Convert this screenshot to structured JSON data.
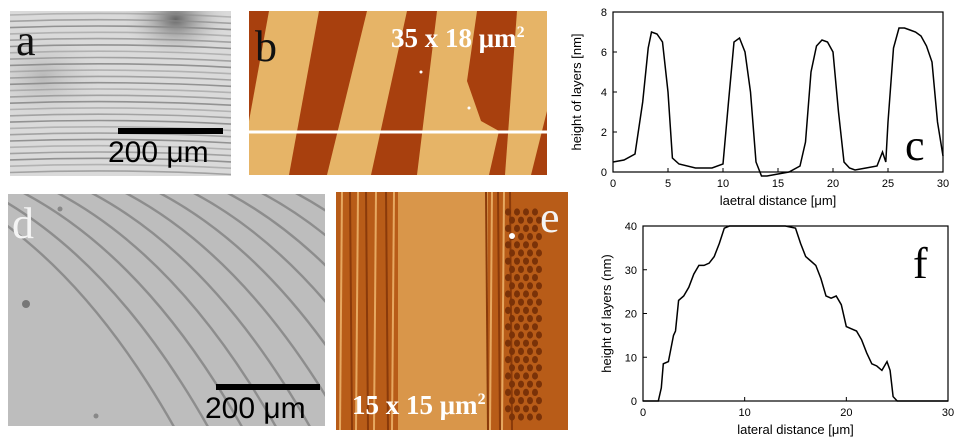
{
  "panels": {
    "a": {
      "letter": "a",
      "scale_bar": "200 μm"
    },
    "b": {
      "letter": "b",
      "area_prefix": "35 x 18 μm",
      "area_exp": "2"
    },
    "d": {
      "letter": "d",
      "scale_bar": "200 μm"
    },
    "e": {
      "letter": "e",
      "area_prefix": "15 x 15 μm",
      "area_exp": "2"
    }
  },
  "chart_data": [
    {
      "type": "line",
      "panel_letter": "c",
      "xlabel": "laetral distance [μm]",
      "ylabel": "height of layers [nm]",
      "xlim": [
        0,
        30
      ],
      "ylim": [
        0,
        8
      ],
      "xticks": [
        "0",
        "5",
        "10",
        "15",
        "20",
        "25",
        "30"
      ],
      "yticks": [
        "0",
        "2",
        "4",
        "6",
        "8"
      ],
      "grid": false,
      "x": [
        0,
        1.0,
        2.0,
        2.7,
        3.2,
        3.5,
        4.0,
        4.5,
        5.0,
        5.4,
        6.0,
        7.5,
        9.0,
        10.0,
        10.5,
        11.0,
        11.5,
        12.0,
        12.5,
        13.0,
        13.5,
        14.0,
        15.0,
        16.0,
        17.0,
        17.5,
        18.0,
        18.5,
        19.0,
        19.5,
        20.0,
        20.5,
        21.0,
        21.5,
        22.0,
        23.0,
        24.0,
        24.5,
        24.8,
        25.0,
        25.5,
        26.0,
        26.5,
        27.0,
        27.5,
        28.0,
        28.5,
        29.0,
        29.5,
        30.0
      ],
      "y": [
        0.5,
        0.6,
        0.9,
        3.5,
        6.2,
        7.0,
        6.9,
        6.5,
        4.0,
        0.7,
        0.4,
        0.2,
        0.2,
        0.4,
        3.5,
        6.5,
        6.7,
        6.0,
        4.0,
        0.5,
        -0.2,
        -0.2,
        -0.1,
        0.0,
        0.3,
        1.5,
        5.0,
        6.3,
        6.6,
        6.5,
        6.0,
        3.0,
        0.5,
        0.2,
        0.1,
        0.2,
        0.3,
        1.0,
        0.5,
        2.5,
        6.2,
        7.2,
        7.2,
        7.1,
        7.0,
        6.8,
        6.3,
        5.5,
        2.5,
        0.8
      ]
    },
    {
      "type": "line",
      "panel_letter": "f",
      "xlabel": "lateral distance [μm]",
      "ylabel": "height of layers (nm)",
      "xlim": [
        0,
        30
      ],
      "ylim": [
        0,
        40
      ],
      "xticks": [
        "0",
        "10",
        "20",
        "30"
      ],
      "yticks": [
        "0",
        "10",
        "20",
        "30",
        "40"
      ],
      "grid": false,
      "x": [
        0,
        1.0,
        1.5,
        1.8,
        2.0,
        2.5,
        3.0,
        3.2,
        3.5,
        4.0,
        4.5,
        5.0,
        5.5,
        6.0,
        6.5,
        7.0,
        7.5,
        8.0,
        8.5,
        9.0,
        10.0,
        12.0,
        14.0,
        15.0,
        15.5,
        16.0,
        16.5,
        17.0,
        17.5,
        18.0,
        18.5,
        19.0,
        19.5,
        20.0,
        20.5,
        21.0,
        21.5,
        22.0,
        22.5,
        23.0,
        23.5,
        24.0,
        24.3,
        24.6,
        25.0,
        26.0,
        30.0
      ],
      "y": [
        0,
        0,
        0,
        3,
        8.5,
        9,
        15,
        16,
        23,
        24,
        26,
        29,
        31,
        31,
        31.5,
        33,
        36,
        39.5,
        40,
        40,
        40,
        40,
        40,
        39.5,
        36,
        33,
        32,
        31,
        28,
        24,
        23.5,
        24,
        22,
        17,
        16.5,
        16,
        14,
        11,
        8.5,
        8,
        7,
        9,
        7,
        1,
        0,
        0,
        0
      ]
    }
  ]
}
